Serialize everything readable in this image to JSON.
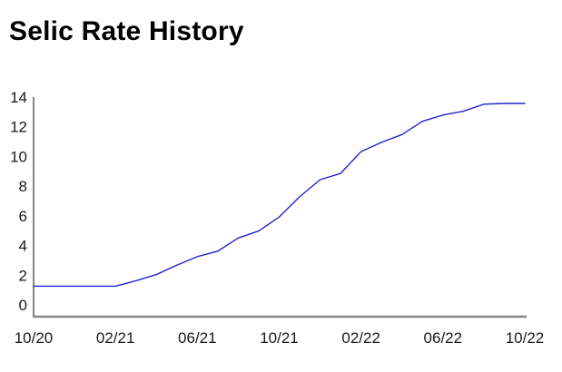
{
  "chart_data": {
    "type": "line",
    "title": "Selic Rate History",
    "xlabel": "",
    "ylabel": "",
    "x": [
      "10/20",
      "11/20",
      "12/20",
      "01/21",
      "02/21",
      "03/21",
      "04/21",
      "05/21",
      "06/21",
      "07/21",
      "08/21",
      "09/21",
      "10/21",
      "11/21",
      "12/21",
      "01/22",
      "02/22",
      "03/22",
      "04/22",
      "05/22",
      "06/22",
      "07/22",
      "08/22",
      "09/22",
      "10/22"
    ],
    "values": [
      1.9,
      1.9,
      1.9,
      1.9,
      1.9,
      2.25,
      2.65,
      3.25,
      3.8,
      4.15,
      5.0,
      5.45,
      6.35,
      7.65,
      8.75,
      9.15,
      10.55,
      11.15,
      11.65,
      12.5,
      12.9,
      13.15,
      13.6,
      13.65,
      13.65
    ],
    "x_tick_labels": [
      "10/20",
      "02/21",
      "06/21",
      "10/21",
      "02/22",
      "06/22",
      "10/22"
    ],
    "x_tick_indices": [
      0,
      4,
      8,
      12,
      16,
      20,
      24
    ],
    "y_ticks": [
      0,
      2,
      4,
      6,
      8,
      10,
      12,
      14
    ],
    "ylim": [
      0,
      14
    ],
    "grid": false,
    "legend": "none",
    "line_color": "#2222cc",
    "axis_color": "#878787",
    "label_color": "#1a1a1a",
    "title_color": "#000000"
  }
}
